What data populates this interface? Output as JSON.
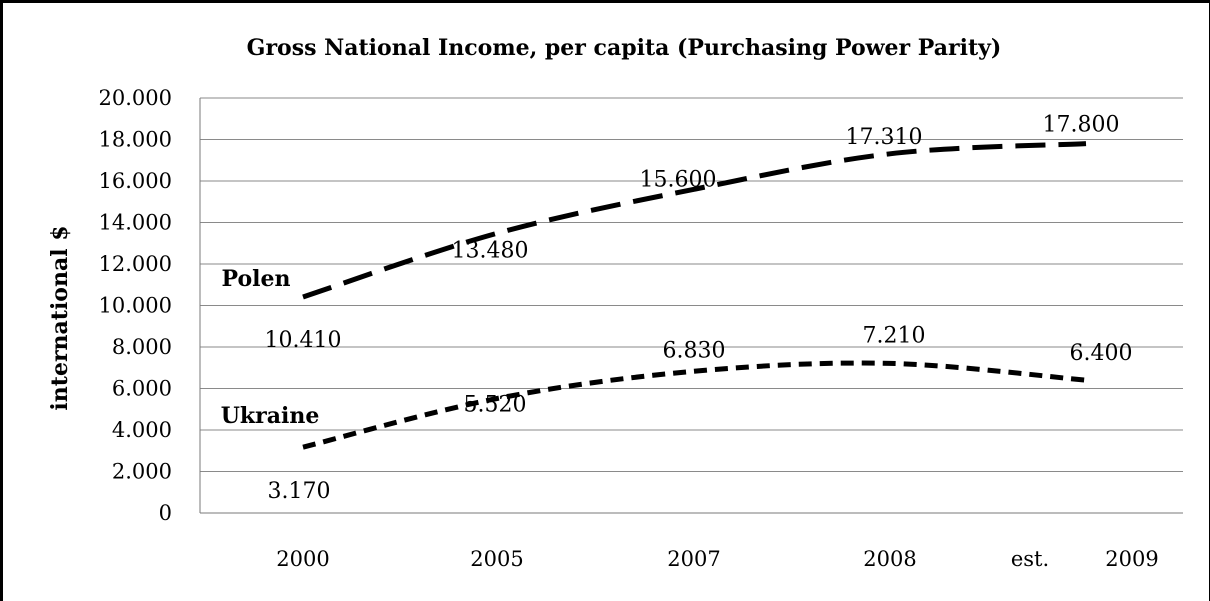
{
  "chart_data": {
    "type": "line",
    "title": "Gross National Income, per capita (Purchasing Power Parity)",
    "ylabel": "international $",
    "xlabel": "",
    "categories": [
      "2000",
      "2005",
      "2007",
      "2008",
      "2009"
    ],
    "category_note": "est.",
    "y_ticks": [
      "0",
      "2.000",
      "4.000",
      "6.000",
      "8.000",
      "10.000",
      "12.000",
      "14.000",
      "16.000",
      "18.000",
      "20.000"
    ],
    "ylim": [
      0,
      20000
    ],
    "grid": true,
    "series": [
      {
        "name": "Polen",
        "values": [
          10410,
          13480,
          15600,
          17310,
          17800
        ],
        "labels": [
          "10.410",
          "13.480",
          "15.600",
          "17.310",
          "17.800"
        ],
        "style": "long-dash"
      },
      {
        "name": "Ukraine",
        "values": [
          3170,
          5520,
          6830,
          7210,
          6400
        ],
        "labels": [
          "3.170",
          "5.520",
          "6.830",
          "7.210",
          "6.400"
        ],
        "style": "short-dash"
      }
    ]
  }
}
